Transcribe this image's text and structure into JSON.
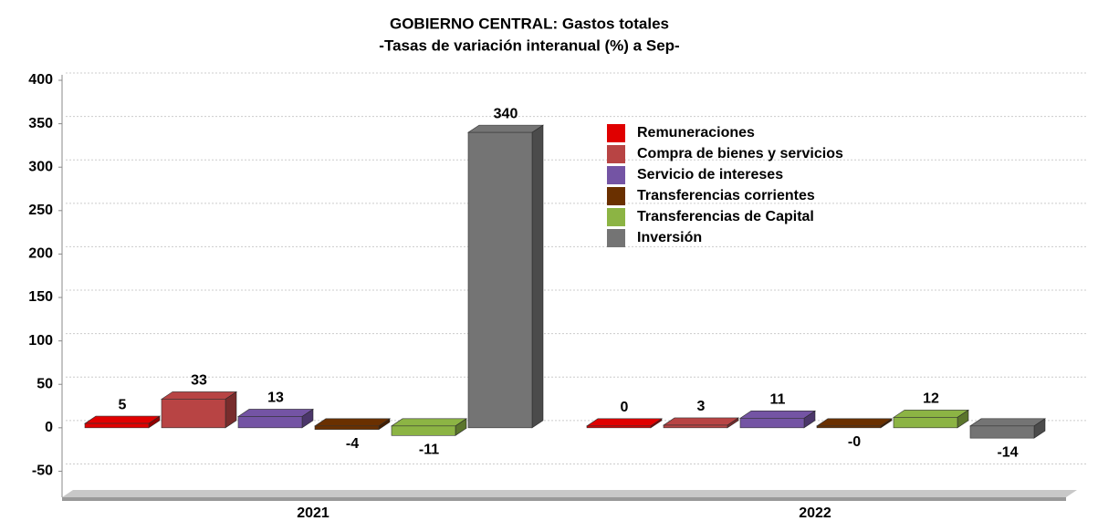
{
  "chart_data": {
    "type": "bar",
    "title": "GOBIERNO CENTRAL: Gastos totales",
    "subtitle": "-Tasas de variación interanual (%) a Sep-",
    "categories": [
      "2021",
      "2022"
    ],
    "series": [
      {
        "name": "Remuneraciones",
        "color": "#e00000",
        "values": [
          5,
          0
        ]
      },
      {
        "name": "Compra de bienes y servicios",
        "color": "#b84444",
        "values": [
          33,
          3
        ]
      },
      {
        "name": "Servicio de intereses",
        "color": "#7454a4",
        "values": [
          13,
          11
        ]
      },
      {
        "name": "Transferencias corrientes",
        "color": "#6a3000",
        "values": [
          -4,
          -0.3
        ],
        "value_labels": [
          "-4",
          "-0"
        ]
      },
      {
        "name": "Transferencias de Capital",
        "color": "#8cb444",
        "values": [
          -11,
          12
        ]
      },
      {
        "name": "Inversión",
        "color": "#747474",
        "values": [
          340,
          -14
        ]
      }
    ],
    "ylim": [
      -80,
      400
    ],
    "yticks": [
      -50,
      0,
      50,
      100,
      150,
      200,
      250,
      300,
      350,
      400
    ],
    "grid": true
  }
}
